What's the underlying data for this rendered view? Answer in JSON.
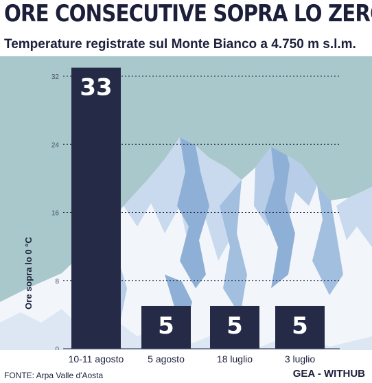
{
  "header": {
    "title": "ORE CONSECUTIVE SOPRA LO ZERO",
    "subtitle": "Temperature registrate sul Monte Bianco a 4.750 m s.l.m."
  },
  "footer": {
    "source": "FONTE: Arpa Valle d'Aosta",
    "credit": "GEA - WITHUB"
  },
  "colors": {
    "sky": "#a9c8cb",
    "bar": "#252a47",
    "text": "#1b1f3a",
    "snow": "#f2f6fb",
    "rock": "#8fb0d6"
  },
  "chart_data": {
    "type": "bar",
    "title": "ORE CONSECUTIVE SOPRA LO ZERO",
    "subtitle": "Temperature registrate sul Monte Bianco a 4.750 m s.l.m.",
    "ylabel": "Ore sopra lo 0 °C",
    "categories": [
      "10-11 agosto",
      "5 agosto",
      "18 luglio",
      "3 luglio"
    ],
    "values": [
      33,
      5,
      5,
      5
    ],
    "yticks": [
      0,
      8,
      16,
      24,
      32
    ],
    "ylim": [
      0,
      32
    ],
    "grid": true
  }
}
